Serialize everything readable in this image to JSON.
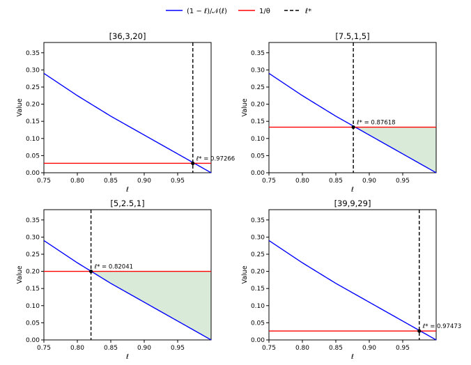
{
  "legend": {
    "entries": [
      {
        "label": "(1 − ℓ)/𝒩(ℓ)",
        "color": "#0000ff",
        "style": "solid"
      },
      {
        "label": "1/θ",
        "color": "#ff0000",
        "style": "solid"
      },
      {
        "label": "ℓ*",
        "color": "#000000",
        "style": "dashed"
      }
    ]
  },
  "colors": {
    "curve": "#0000ff",
    "threshold": "#ff0000",
    "marker": "#000000",
    "shade": "#d9ead9"
  },
  "chart_data": [
    {
      "type": "line",
      "title": "[36,3,20]",
      "xlabel": "ℓ",
      "ylabel": "Value",
      "xlim": [
        0.75,
        1.0
      ],
      "ylim": [
        0.0,
        0.38
      ],
      "xticks": [
        "0.75",
        "0.80",
        "0.85",
        "0.90",
        "0.95"
      ],
      "yticks": [
        "0.00",
        "0.05",
        "0.10",
        "0.15",
        "0.20",
        "0.25",
        "0.30",
        "0.35"
      ],
      "series": [
        {
          "name": "(1 − ℓ)/𝒩(ℓ)",
          "x": [
            0.75,
            0.8,
            0.85,
            0.9,
            0.95,
            1.0
          ],
          "values": [
            0.29,
            0.225,
            0.165,
            0.11,
            0.055,
            0.0
          ]
        }
      ],
      "threshold": 0.0275,
      "l_star": 0.97266,
      "annotation": "ℓ* = 0.97266",
      "shaded": false
    },
    {
      "type": "line",
      "title": "[7.5,1,5]",
      "xlabel": "ℓ",
      "ylabel": "Value",
      "xlim": [
        0.75,
        1.0
      ],
      "ylim": [
        0.0,
        0.38
      ],
      "xticks": [
        "0.75",
        "0.80",
        "0.85",
        "0.90",
        "0.95"
      ],
      "yticks": [
        "0.00",
        "0.05",
        "0.10",
        "0.15",
        "0.20",
        "0.25",
        "0.30",
        "0.35"
      ],
      "series": [
        {
          "name": "(1 − ℓ)/𝒩(ℓ)",
          "x": [
            0.75,
            0.8,
            0.85,
            0.9,
            0.95,
            1.0
          ],
          "values": [
            0.29,
            0.225,
            0.165,
            0.11,
            0.055,
            0.0
          ]
        }
      ],
      "threshold": 0.133,
      "l_star": 0.87618,
      "annotation": "ℓ* = 0.87618",
      "shaded": true
    },
    {
      "type": "line",
      "title": "[5,2.5,1]",
      "xlabel": "ℓ",
      "ylabel": "Value",
      "xlim": [
        0.75,
        1.0
      ],
      "ylim": [
        0.0,
        0.38
      ],
      "xticks": [
        "0.75",
        "0.80",
        "0.85",
        "0.90",
        "0.95"
      ],
      "yticks": [
        "0.00",
        "0.05",
        "0.10",
        "0.15",
        "0.20",
        "0.25",
        "0.30",
        "0.35"
      ],
      "series": [
        {
          "name": "(1 − ℓ)/𝒩(ℓ)",
          "x": [
            0.75,
            0.8,
            0.85,
            0.9,
            0.95,
            1.0
          ],
          "values": [
            0.29,
            0.225,
            0.165,
            0.11,
            0.055,
            0.0
          ]
        }
      ],
      "threshold": 0.2,
      "l_star": 0.82041,
      "annotation": "ℓ* = 0.82041",
      "shaded": true
    },
    {
      "type": "line",
      "title": "[39,9,29]",
      "xlabel": "ℓ",
      "ylabel": "Value",
      "xlim": [
        0.75,
        1.0
      ],
      "ylim": [
        0.0,
        0.38
      ],
      "xticks": [
        "0.75",
        "0.80",
        "0.85",
        "0.90",
        "0.95"
      ],
      "yticks": [
        "0.00",
        "0.05",
        "0.10",
        "0.15",
        "0.20",
        "0.25",
        "0.30",
        "0.35"
      ],
      "series": [
        {
          "name": "(1 − ℓ)/𝒩(ℓ)",
          "x": [
            0.75,
            0.8,
            0.85,
            0.9,
            0.95,
            1.0
          ],
          "values": [
            0.29,
            0.225,
            0.165,
            0.11,
            0.055,
            0.0
          ]
        }
      ],
      "threshold": 0.026,
      "l_star": 0.97473,
      "annotation": "ℓ* = 0.97473",
      "shaded": false
    }
  ]
}
